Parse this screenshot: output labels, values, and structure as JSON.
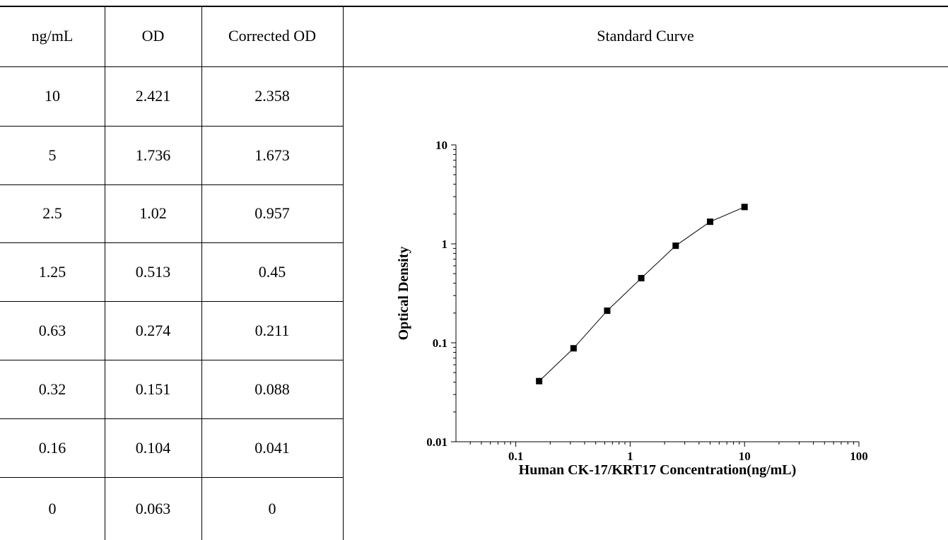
{
  "table": {
    "headers": [
      "ng/mL",
      "OD",
      "Corrected OD"
    ],
    "rows": [
      [
        "10",
        "2.421",
        "2.358"
      ],
      [
        "5",
        "1.736",
        "1.673"
      ],
      [
        "2.5",
        "1.02",
        "0.957"
      ],
      [
        "1.25",
        "0.513",
        "0.45"
      ],
      [
        "0.63",
        "0.274",
        "0.211"
      ],
      [
        "0.32",
        "0.151",
        "0.088"
      ],
      [
        "0.16",
        "0.104",
        "0.041"
      ],
      [
        "0",
        "0.063",
        "0"
      ]
    ]
  },
  "chart_panel": {
    "header": "Standard Curve"
  },
  "chart_data": {
    "type": "scatter",
    "title": "",
    "xlabel": "Human CK-17/KRT17 Concentration(ng/mL)",
    "ylabel": "Optical Density",
    "x_scale": "log",
    "y_scale": "log",
    "xlim": [
      0.03,
      100
    ],
    "ylim": [
      0.01,
      10
    ],
    "x_tick_labels": [
      "0.1",
      "1",
      "10",
      "100"
    ],
    "y_tick_labels": [
      "0.01",
      "0.1",
      "1",
      "10"
    ],
    "grid": false,
    "legend": "none",
    "marker": "square",
    "line": true,
    "series": [
      {
        "x": [
          0.16,
          0.32,
          0.63,
          1.25,
          2.5,
          5,
          10
        ],
        "y": [
          0.041,
          0.088,
          0.211,
          0.45,
          0.957,
          1.673,
          2.358
        ]
      }
    ]
  }
}
